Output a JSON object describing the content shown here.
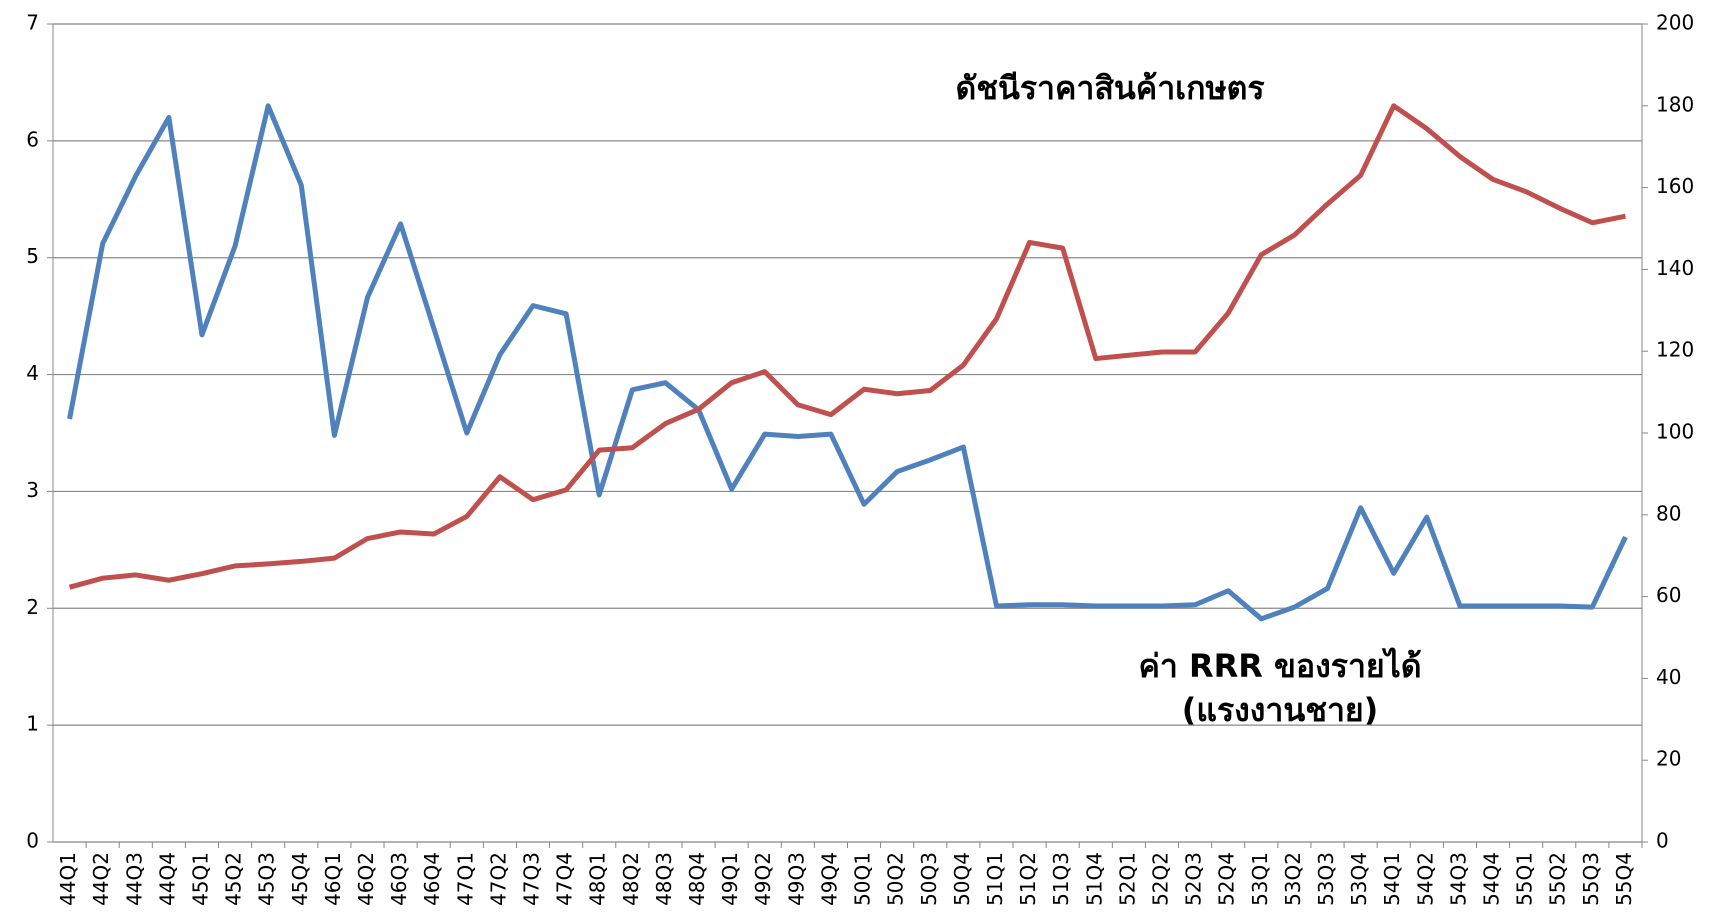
{
  "chart_data": {
    "type": "line",
    "categories": [
      "44Q1",
      "44Q2",
      "44Q3",
      "44Q4",
      "45Q1",
      "45Q2",
      "45Q3",
      "45Q4",
      "46Q1",
      "46Q2",
      "46Q3",
      "46Q4",
      "47Q1",
      "47Q2",
      "47Q3",
      "47Q4",
      "48Q1",
      "48Q2",
      "48Q3",
      "48Q4",
      "49Q1",
      "49Q2",
      "49Q3",
      "49Q4",
      "50Q1",
      "50Q2",
      "50Q3",
      "50Q4",
      "51Q1",
      "51Q2",
      "51Q3",
      "51Q4",
      "52Q1",
      "52Q2",
      "52Q3",
      "52Q4",
      "53Q1",
      "53Q2",
      "53Q3",
      "53Q4",
      "54Q1",
      "54Q2",
      "54Q3",
      "54Q4",
      "55Q1",
      "55Q2",
      "55Q3",
      "55Q4"
    ],
    "series": [
      {
        "color": "#4f81bd",
        "values": [
          3.62,
          5.12,
          5.7,
          6.2,
          4.34,
          5.1,
          6.3,
          5.62,
          3.48,
          4.66,
          5.29,
          4.4,
          3.5,
          4.17,
          4.59,
          4.52,
          2.97,
          3.87,
          3.93,
          3.7,
          3.02,
          3.49,
          3.47,
          3.49,
          2.89,
          3.17,
          3.27,
          3.38,
          2.02,
          2.03,
          2.03,
          2.02,
          2.02,
          2.02,
          2.03,
          2.15,
          1.91,
          2.01,
          2.17,
          2.86,
          2.3,
          2.78,
          2.02,
          2.02,
          2.02,
          2.02,
          2.01,
          2.61
        ]
      },
      {
        "color": "#c0504d",
        "axis": "y2",
        "values": [
          62.3,
          64.5,
          65.3,
          64,
          65.6,
          67.5,
          68,
          68.6,
          69.4,
          74.2,
          75.8,
          75.3,
          79.6,
          89.3,
          83.7,
          86.1,
          95.8,
          96.4,
          102.3,
          105.8,
          112.3,
          115,
          106.9,
          104.5,
          110.7,
          109.6,
          110.4,
          116.6,
          127.9,
          146.6,
          145.2,
          118.2,
          119,
          119.8,
          119.8,
          129.3,
          143.6,
          148.4,
          156,
          163,
          180,
          174.4,
          167.6,
          162,
          159,
          155,
          151.4,
          153
        ]
      }
    ],
    "annotations": [
      "ดัชนีราคาสินค้าเกษตร",
      "ค่า RRR ของรายได้",
      "(แรงงานชาย)"
    ],
    "ylim": [
      0,
      7
    ],
    "yticks": [
      0,
      1,
      2,
      3,
      4,
      5,
      6,
      7
    ],
    "y2lim": [
      0,
      200
    ],
    "y2ticks": [
      0,
      20,
      40,
      60,
      80,
      100,
      120,
      140,
      160,
      180,
      200
    ],
    "grid": true
  }
}
